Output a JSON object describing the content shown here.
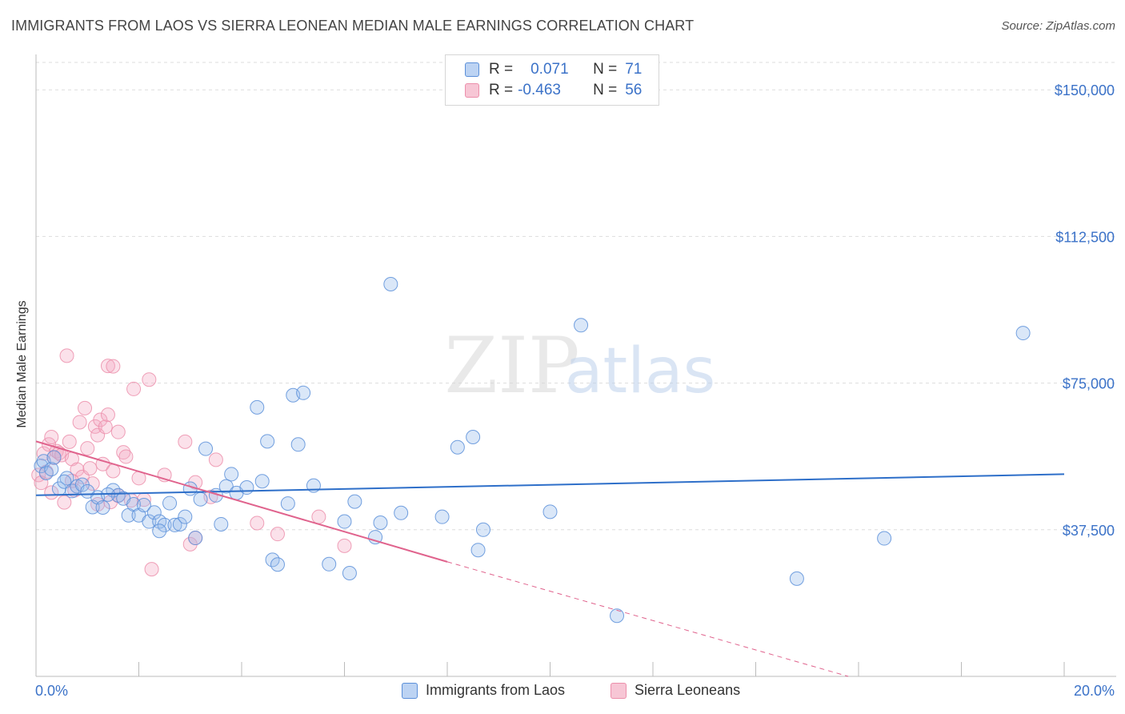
{
  "title": "IMMIGRANTS FROM LAOS VS SIERRA LEONEAN MEDIAN MALE EARNINGS CORRELATION CHART",
  "source": "Source: ZipAtlas.com",
  "watermark": {
    "zip": "ZIP",
    "atlas": "atlas"
  },
  "legend": {
    "rows": [
      {
        "r_label": "R =",
        "r_value": "0.071",
        "n_label": "N =",
        "n_value": "71"
      },
      {
        "r_label": "R =",
        "r_value": "-0.463",
        "n_label": "N =",
        "n_value": "56"
      }
    ]
  },
  "colors": {
    "blue": "#5b8fd9",
    "blue_line": "#2e6fc9",
    "pink": "#ec8fab",
    "pink_line": "#e0638d",
    "axis_text": "#3b72c8",
    "grid": "#dddddd"
  },
  "chart_data": {
    "type": "scatter",
    "title": "IMMIGRANTS FROM LAOS VS SIERRA LEONEAN MEDIAN MALE EARNINGS CORRELATION CHART",
    "xlabel": "",
    "ylabel": "Median Male Earnings",
    "xlim": [
      0,
      20
    ],
    "ylim": [
      0,
      157000
    ],
    "x_tick_labels": {
      "left": "0.0%",
      "right": "20.0%"
    },
    "y_ticks": [
      37500,
      75000,
      112500,
      150000
    ],
    "y_tick_labels": [
      "$37,500",
      "$75,000",
      "$112,500",
      "$150,000"
    ],
    "grid": true,
    "series": [
      {
        "name": "Immigrants from Laos",
        "color": "#5b8fd9",
        "R": 0.071,
        "N": 71,
        "trend": {
          "x0": 0,
          "y0": 46300,
          "x1": 20,
          "y1": 51700
        },
        "points": [
          [
            0.1,
            53800
          ],
          [
            0.15,
            55000
          ],
          [
            0.2,
            52000
          ],
          [
            0.3,
            53000
          ],
          [
            0.35,
            56000
          ],
          [
            0.45,
            48000
          ],
          [
            0.6,
            50700
          ],
          [
            0.55,
            49800
          ],
          [
            0.7,
            47400
          ],
          [
            0.8,
            48600
          ],
          [
            0.9,
            49000
          ],
          [
            1.0,
            47300
          ],
          [
            1.1,
            43300
          ],
          [
            1.2,
            45800
          ],
          [
            1.3,
            43200
          ],
          [
            1.5,
            47600
          ],
          [
            1.6,
            46300
          ],
          [
            1.7,
            45500
          ],
          [
            1.8,
            41200
          ],
          [
            1.9,
            44000
          ],
          [
            2.0,
            41200
          ],
          [
            2.1,
            43800
          ],
          [
            2.2,
            39600
          ],
          [
            2.3,
            41900
          ],
          [
            2.4,
            39600
          ],
          [
            2.5,
            38700
          ],
          [
            2.6,
            44300
          ],
          [
            2.7,
            38700
          ],
          [
            2.8,
            38900
          ],
          [
            2.9,
            40800
          ],
          [
            3.0,
            48000
          ],
          [
            3.1,
            35400
          ],
          [
            3.2,
            45300
          ],
          [
            3.3,
            58200
          ],
          [
            3.5,
            46300
          ],
          [
            3.6,
            38900
          ],
          [
            3.7,
            48600
          ],
          [
            3.8,
            51700
          ],
          [
            3.9,
            46900
          ],
          [
            4.1,
            48300
          ],
          [
            4.3,
            68800
          ],
          [
            4.4,
            49900
          ],
          [
            4.5,
            60100
          ],
          [
            4.6,
            29800
          ],
          [
            4.7,
            28600
          ],
          [
            4.9,
            44200
          ],
          [
            5.0,
            71900
          ],
          [
            5.1,
            59300
          ],
          [
            5.2,
            72500
          ],
          [
            5.4,
            48800
          ],
          [
            5.7,
            28700
          ],
          [
            6.0,
            39600
          ],
          [
            6.1,
            26400
          ],
          [
            6.2,
            44700
          ],
          [
            6.6,
            35600
          ],
          [
            6.7,
            39300
          ],
          [
            6.9,
            100300
          ],
          [
            7.1,
            41800
          ],
          [
            7.9,
            40800
          ],
          [
            8.2,
            58600
          ],
          [
            8.5,
            61200
          ],
          [
            8.6,
            32300
          ],
          [
            8.7,
            37500
          ],
          [
            10.0,
            42100
          ],
          [
            10.6,
            89800
          ],
          [
            11.3,
            15500
          ],
          [
            14.8,
            25000
          ],
          [
            16.5,
            35300
          ],
          [
            19.2,
            87800
          ],
          [
            2.4,
            37200
          ],
          [
            1.4,
            46500
          ]
        ]
      },
      {
        "name": "Sierra Leoneans",
        "color": "#ec8fab",
        "R": -0.463,
        "N": 56,
        "trend": {
          "x0": 0,
          "y0": 60100,
          "x1": 8,
          "y1": 29300,
          "dash_x1": 15.8,
          "dash_y1": 0
        },
        "points": [
          [
            0.05,
            51500
          ],
          [
            0.1,
            49500
          ],
          [
            0.15,
            57000
          ],
          [
            0.2,
            52300
          ],
          [
            0.25,
            59300
          ],
          [
            0.3,
            61200
          ],
          [
            0.35,
            55900
          ],
          [
            0.4,
            57600
          ],
          [
            0.45,
            57100
          ],
          [
            0.5,
            56600
          ],
          [
            0.55,
            44500
          ],
          [
            0.6,
            82000
          ],
          [
            0.65,
            60000
          ],
          [
            0.7,
            55600
          ],
          [
            0.75,
            47600
          ],
          [
            0.8,
            52900
          ],
          [
            0.85,
            65000
          ],
          [
            0.9,
            51000
          ],
          [
            0.95,
            68600
          ],
          [
            1.0,
            58300
          ],
          [
            1.05,
            53200
          ],
          [
            1.1,
            49300
          ],
          [
            1.15,
            63900
          ],
          [
            1.2,
            61700
          ],
          [
            1.25,
            65600
          ],
          [
            1.3,
            54300
          ],
          [
            1.35,
            63800
          ],
          [
            1.4,
            66900
          ],
          [
            1.5,
            52500
          ],
          [
            1.45,
            44600
          ],
          [
            1.6,
            46200
          ],
          [
            1.4,
            79400
          ],
          [
            1.5,
            79300
          ],
          [
            1.6,
            62500
          ],
          [
            1.7,
            57300
          ],
          [
            1.75,
            56200
          ],
          [
            1.85,
            45000
          ],
          [
            1.9,
            73500
          ],
          [
            2.0,
            50700
          ],
          [
            2.1,
            45200
          ],
          [
            2.2,
            75900
          ],
          [
            2.25,
            27400
          ],
          [
            2.5,
            51500
          ],
          [
            2.9,
            60000
          ],
          [
            3.0,
            33800
          ],
          [
            3.1,
            35400
          ],
          [
            3.1,
            49600
          ],
          [
            3.4,
            45900
          ],
          [
            3.5,
            55400
          ],
          [
            4.3,
            39200
          ],
          [
            4.7,
            36400
          ],
          [
            5.5,
            40800
          ],
          [
            6.0,
            33400
          ],
          [
            1.2,
            44000
          ],
          [
            0.7,
            50000
          ],
          [
            0.3,
            47000
          ]
        ]
      }
    ]
  },
  "bottom_legend": [
    {
      "label": "Immigrants from Laos",
      "color": "#5b8fd9"
    },
    {
      "label": "Sierra Leoneans",
      "color": "#ec8fab"
    }
  ]
}
